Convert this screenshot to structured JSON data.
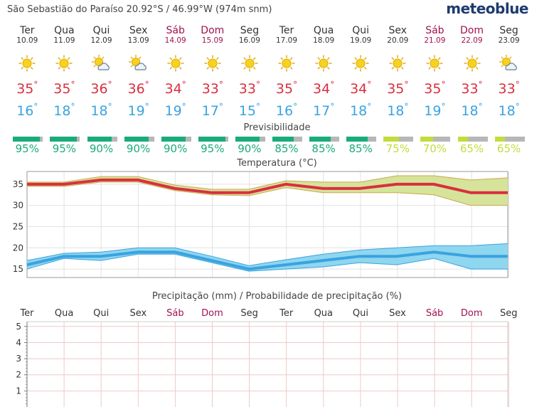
{
  "header": {
    "location": "São Sebastião do Paraíso  20.92°S / 46.99°W (974m snm)",
    "logo": "meteoblue"
  },
  "days": [
    {
      "name": "Ter",
      "date": "10.09",
      "weekend": false,
      "icon": "sun-icon",
      "max": "35",
      "min": "16",
      "pred": "95%",
      "pred_level": 0.95
    },
    {
      "name": "Qua",
      "date": "11.09",
      "weekend": false,
      "icon": "sun-icon",
      "max": "35",
      "min": "18",
      "pred": "95%",
      "pred_level": 0.95
    },
    {
      "name": "Qui",
      "date": "12.09",
      "weekend": false,
      "icon": "sun-cloud-icon",
      "max": "36",
      "min": "18",
      "pred": "90%",
      "pred_level": 0.9
    },
    {
      "name": "Sex",
      "date": "13.09",
      "weekend": false,
      "icon": "sun-cloud-icon",
      "max": "36",
      "min": "19",
      "pred": "90%",
      "pred_level": 0.9
    },
    {
      "name": "Sáb",
      "date": "14.09",
      "weekend": true,
      "icon": "sun-icon",
      "max": "34",
      "min": "19",
      "pred": "90%",
      "pred_level": 0.9
    },
    {
      "name": "Dom",
      "date": "15.09",
      "weekend": true,
      "icon": "sun-icon",
      "max": "33",
      "min": "17",
      "pred": "95%",
      "pred_level": 0.95
    },
    {
      "name": "Seg",
      "date": "16.09",
      "weekend": false,
      "icon": "sun-icon",
      "max": "33",
      "min": "15",
      "pred": "90%",
      "pred_level": 0.9
    },
    {
      "name": "Ter",
      "date": "17.09",
      "weekend": false,
      "icon": "sun-icon",
      "max": "35",
      "min": "16",
      "pred": "85%",
      "pred_level": 0.85
    },
    {
      "name": "Qua",
      "date": "18.09",
      "weekend": false,
      "icon": "sun-icon",
      "max": "34",
      "min": "17",
      "pred": "85%",
      "pred_level": 0.85
    },
    {
      "name": "Qui",
      "date": "19.09",
      "weekend": false,
      "icon": "sun-icon",
      "max": "34",
      "min": "18",
      "pred": "85%",
      "pred_level": 0.85
    },
    {
      "name": "Sex",
      "date": "20.09",
      "weekend": false,
      "icon": "sun-icon",
      "max": "35",
      "min": "18",
      "pred": "75%",
      "pred_level": 0.75
    },
    {
      "name": "Sáb",
      "date": "21.09",
      "weekend": true,
      "icon": "sun-icon",
      "max": "35",
      "min": "19",
      "pred": "70%",
      "pred_level": 0.7
    },
    {
      "name": "Dom",
      "date": "22.09",
      "weekend": true,
      "icon": "sun-icon",
      "max": "33",
      "min": "18",
      "pred": "65%",
      "pred_level": 0.65
    },
    {
      "name": "Seg",
      "date": "23.09",
      "weekend": false,
      "icon": "sun-cloud-icon",
      "max": "33",
      "min": "18",
      "pred": "65%",
      "pred_level": 0.65
    }
  ],
  "degree_symbol": "°",
  "predictability_title": "Previsibilidade",
  "colors": {
    "max": "#d8303f",
    "min": "#3aa3e0",
    "weekend": "#a0124f",
    "pred_high": "#1aab7a",
    "pred_low": "#c4dc3b",
    "band_max": "#d6e39a",
    "band_min": "#8fd6ef"
  },
  "chart_data": [
    {
      "type": "line",
      "title": "Temperatura (°C)",
      "ylim": [
        13,
        38
      ],
      "yticks": [
        "15",
        "20",
        "25",
        "30",
        "35"
      ],
      "x": [
        "10.09",
        "11.09",
        "12.09",
        "13.09",
        "14.09",
        "15.09",
        "16.09",
        "17.09",
        "18.09",
        "19.09",
        "20.09",
        "21.09",
        "22.09",
        "23.09"
      ],
      "series": [
        {
          "role": "max",
          "values": [
            35,
            35,
            36,
            36,
            34,
            33,
            33,
            35,
            34,
            34,
            35,
            35,
            33,
            33
          ],
          "band": [
            [
              34.5,
              35.5
            ],
            [
              34.5,
              35.5
            ],
            [
              35.5,
              36.8
            ],
            [
              35.5,
              36.8
            ],
            [
              33.5,
              34.8
            ],
            [
              32.5,
              33.8
            ],
            [
              32.3,
              33.8
            ],
            [
              34.2,
              35.8
            ],
            [
              33,
              35.5
            ],
            [
              33,
              35.5
            ],
            [
              33,
              37
            ],
            [
              32.5,
              37
            ],
            [
              30,
              36
            ],
            [
              30,
              36.5
            ]
          ]
        },
        {
          "role": "min",
          "values": [
            16,
            18,
            18,
            19,
            19,
            17,
            15,
            16,
            17,
            18,
            18,
            19,
            18,
            18
          ],
          "band": [
            [
              15,
              17
            ],
            [
              17.5,
              18.7
            ],
            [
              17,
              19
            ],
            [
              18.5,
              20
            ],
            [
              18.5,
              20
            ],
            [
              16.5,
              18
            ],
            [
              14.5,
              15.8
            ],
            [
              15,
              17.2
            ],
            [
              15.5,
              18.5
            ],
            [
              16.5,
              19.5
            ],
            [
              16,
              20
            ],
            [
              17.5,
              20.5
            ],
            [
              15,
              20.5
            ],
            [
              15,
              21
            ]
          ]
        }
      ]
    },
    {
      "type": "bar",
      "title": "Precipitação (mm) / Probabilidade de precipitação (%)",
      "categories": [
        "Ter",
        "Qua",
        "Qui",
        "Sex",
        "Sáb",
        "Dom",
        "Seg",
        "Ter",
        "Qua",
        "Qui",
        "Sex",
        "Sáb",
        "Dom",
        "Seg"
      ],
      "weekend": [
        false,
        false,
        false,
        false,
        true,
        true,
        false,
        false,
        false,
        false,
        false,
        true,
        true,
        false
      ],
      "values": [
        0,
        0,
        0,
        0,
        0,
        0,
        0,
        0,
        0,
        0,
        0,
        0,
        0,
        0
      ],
      "ylim": [
        0,
        5.3
      ],
      "yticks": [
        "1",
        "2",
        "3",
        "4",
        "5"
      ]
    }
  ]
}
